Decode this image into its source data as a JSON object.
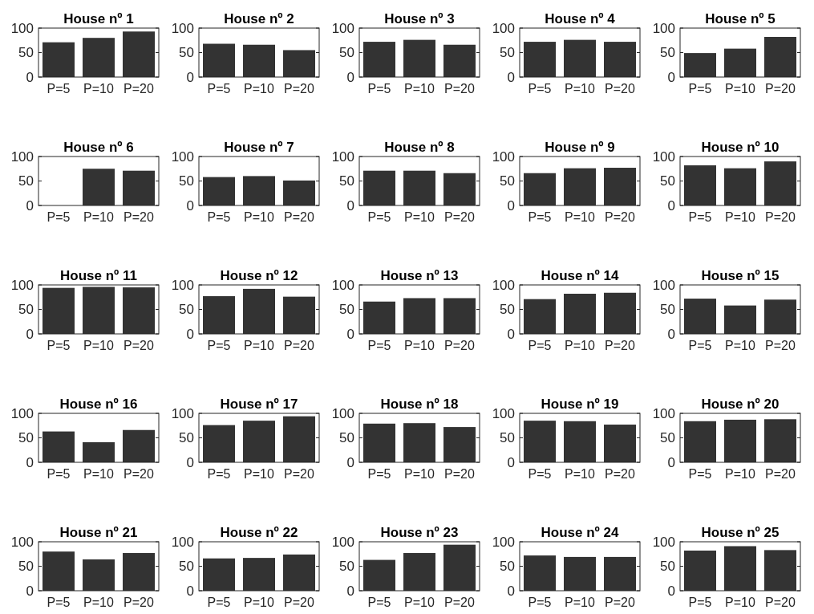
{
  "chart_data": [
    {
      "type": "bar",
      "title": "House nº 1",
      "categories": [
        "P=5",
        "P=10",
        "P=20"
      ],
      "values": [
        71,
        80,
        93
      ],
      "color": "#333333",
      "ylim": [
        0,
        100
      ],
      "yticks": [
        0,
        50,
        100
      ]
    },
    {
      "type": "bar",
      "title": "House nº 2",
      "categories": [
        "P=5",
        "P=10",
        "P=20"
      ],
      "values": [
        68,
        66,
        55
      ],
      "color": "#333333",
      "ylim": [
        0,
        100
      ],
      "yticks": [
        0,
        50,
        100
      ]
    },
    {
      "type": "bar",
      "title": "House nº 3",
      "categories": [
        "P=5",
        "P=10",
        "P=20"
      ],
      "values": [
        72,
        76,
        66
      ],
      "color": "#333333",
      "ylim": [
        0,
        100
      ],
      "yticks": [
        0,
        50,
        100
      ]
    },
    {
      "type": "bar",
      "title": "House nº 4",
      "categories": [
        "P=5",
        "P=10",
        "P=20"
      ],
      "values": [
        72,
        76,
        72
      ],
      "color": "#333333",
      "ylim": [
        0,
        100
      ],
      "yticks": [
        0,
        50,
        100
      ]
    },
    {
      "type": "bar",
      "title": "House nº 5",
      "categories": [
        "P=5",
        "P=10",
        "P=20"
      ],
      "values": [
        49,
        58,
        82
      ],
      "color": "#333333",
      "ylim": [
        0,
        100
      ],
      "yticks": [
        0,
        50,
        100
      ]
    },
    {
      "type": "bar",
      "title": "House nº 6",
      "categories": [
        "P=5",
        "P=10",
        "P=20"
      ],
      "values": [
        0,
        75,
        71
      ],
      "color": "#333333",
      "ylim": [
        0,
        100
      ],
      "yticks": [
        0,
        50,
        100
      ]
    },
    {
      "type": "bar",
      "title": "House nº 7",
      "categories": [
        "P=5",
        "P=10",
        "P=20"
      ],
      "values": [
        58,
        60,
        51
      ],
      "color": "#333333",
      "ylim": [
        0,
        100
      ],
      "yticks": [
        0,
        50,
        100
      ]
    },
    {
      "type": "bar",
      "title": "House nº 8",
      "categories": [
        "P=5",
        "P=10",
        "P=20"
      ],
      "values": [
        71,
        71,
        66
      ],
      "color": "#333333",
      "ylim": [
        0,
        100
      ],
      "yticks": [
        0,
        50,
        100
      ]
    },
    {
      "type": "bar",
      "title": "House nº 9",
      "categories": [
        "P=5",
        "P=10",
        "P=20"
      ],
      "values": [
        66,
        76,
        77
      ],
      "color": "#333333",
      "ylim": [
        0,
        100
      ],
      "yticks": [
        0,
        50,
        100
      ]
    },
    {
      "type": "bar",
      "title": "House nº 10",
      "categories": [
        "P=5",
        "P=10",
        "P=20"
      ],
      "values": [
        82,
        76,
        90
      ],
      "color": "#333333",
      "ylim": [
        0,
        100
      ],
      "yticks": [
        0,
        50,
        100
      ]
    },
    {
      "type": "bar",
      "title": "House nº 11",
      "categories": [
        "P=5",
        "P=10",
        "P=20"
      ],
      "values": [
        94,
        96,
        95
      ],
      "color": "#333333",
      "ylim": [
        0,
        100
      ],
      "yticks": [
        0,
        50,
        100
      ]
    },
    {
      "type": "bar",
      "title": "House nº 12",
      "categories": [
        "P=5",
        "P=10",
        "P=20"
      ],
      "values": [
        77,
        92,
        76
      ],
      "color": "#333333",
      "ylim": [
        0,
        100
      ],
      "yticks": [
        0,
        50,
        100
      ]
    },
    {
      "type": "bar",
      "title": "House nº 13",
      "categories": [
        "P=5",
        "P=10",
        "P=20"
      ],
      "values": [
        66,
        73,
        73
      ],
      "color": "#333333",
      "ylim": [
        0,
        100
      ],
      "yticks": [
        0,
        50,
        100
      ]
    },
    {
      "type": "bar",
      "title": "House nº 14",
      "categories": [
        "P=5",
        "P=10",
        "P=20"
      ],
      "values": [
        71,
        82,
        84
      ],
      "color": "#333333",
      "ylim": [
        0,
        100
      ],
      "yticks": [
        0,
        50,
        100
      ]
    },
    {
      "type": "bar",
      "title": "House nº 15",
      "categories": [
        "P=5",
        "P=10",
        "P=20"
      ],
      "values": [
        72,
        58,
        70
      ],
      "color": "#333333",
      "ylim": [
        0,
        100
      ],
      "yticks": [
        0,
        50,
        100
      ]
    },
    {
      "type": "bar",
      "title": "House nº 16",
      "categories": [
        "P=5",
        "P=10",
        "P=20"
      ],
      "values": [
        63,
        41,
        66
      ],
      "color": "#333333",
      "ylim": [
        0,
        100
      ],
      "yticks": [
        0,
        50,
        100
      ]
    },
    {
      "type": "bar",
      "title": "House nº 17",
      "categories": [
        "P=5",
        "P=10",
        "P=20"
      ],
      "values": [
        76,
        85,
        94
      ],
      "color": "#333333",
      "ylim": [
        0,
        100
      ],
      "yticks": [
        0,
        50,
        100
      ]
    },
    {
      "type": "bar",
      "title": "House nº 18",
      "categories": [
        "P=5",
        "P=10",
        "P=20"
      ],
      "values": [
        79,
        80,
        72
      ],
      "color": "#333333",
      "ylim": [
        0,
        100
      ],
      "yticks": [
        0,
        50,
        100
      ]
    },
    {
      "type": "bar",
      "title": "House nº 19",
      "categories": [
        "P=5",
        "P=10",
        "P=20"
      ],
      "values": [
        85,
        84,
        77
      ],
      "color": "#333333",
      "ylim": [
        0,
        100
      ],
      "yticks": [
        0,
        50,
        100
      ]
    },
    {
      "type": "bar",
      "title": "House nº 20",
      "categories": [
        "P=5",
        "P=10",
        "P=20"
      ],
      "values": [
        84,
        87,
        88
      ],
      "color": "#333333",
      "ylim": [
        0,
        100
      ],
      "yticks": [
        0,
        50,
        100
      ]
    },
    {
      "type": "bar",
      "title": "House nº 21",
      "categories": [
        "P=5",
        "P=10",
        "P=20"
      ],
      "values": [
        80,
        64,
        77
      ],
      "color": "#333333",
      "ylim": [
        0,
        100
      ],
      "yticks": [
        0,
        50,
        100
      ]
    },
    {
      "type": "bar",
      "title": "House nº 22",
      "categories": [
        "P=5",
        "P=10",
        "P=20"
      ],
      "values": [
        66,
        67,
        74
      ],
      "color": "#333333",
      "ylim": [
        0,
        100
      ],
      "yticks": [
        0,
        50,
        100
      ]
    },
    {
      "type": "bar",
      "title": "House nº 23",
      "categories": [
        "P=5",
        "P=10",
        "P=20"
      ],
      "values": [
        63,
        77,
        94
      ],
      "color": "#333333",
      "ylim": [
        0,
        100
      ],
      "yticks": [
        0,
        50,
        100
      ]
    },
    {
      "type": "bar",
      "title": "House nº 24",
      "categories": [
        "P=5",
        "P=10",
        "P=20"
      ],
      "values": [
        72,
        69,
        69
      ],
      "color": "#333333",
      "ylim": [
        0,
        100
      ],
      "yticks": [
        0,
        50,
        100
      ]
    },
    {
      "type": "bar",
      "title": "House nº 25",
      "categories": [
        "P=5",
        "P=10",
        "P=20"
      ],
      "values": [
        82,
        91,
        83
      ],
      "color": "#333333",
      "ylim": [
        0,
        100
      ],
      "yticks": [
        0,
        50,
        100
      ]
    }
  ]
}
